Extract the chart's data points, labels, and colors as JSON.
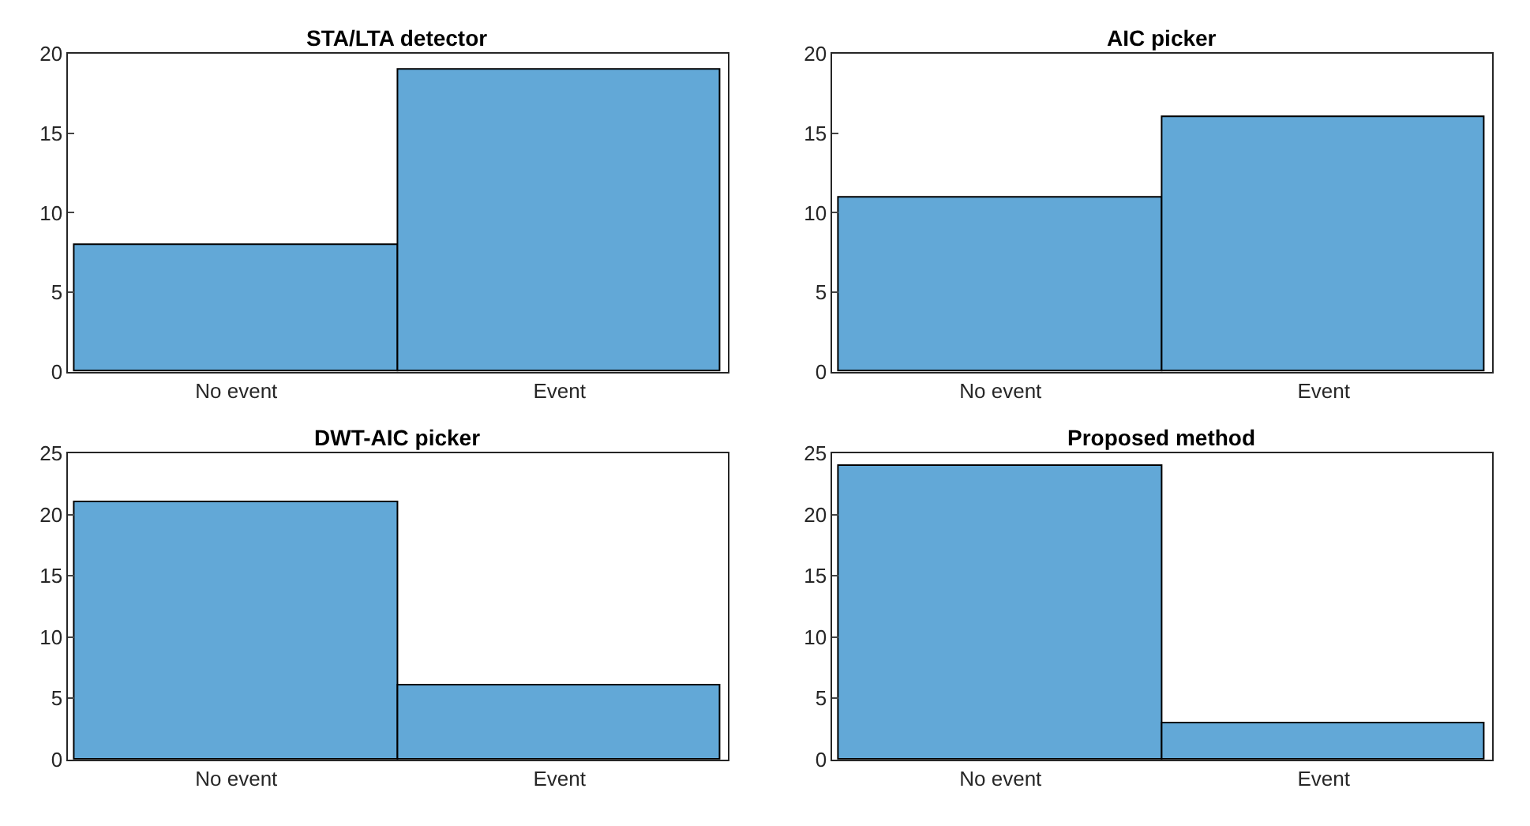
{
  "chart_data": [
    {
      "type": "bar",
      "title": "STA/LTA detector",
      "categories": [
        "No event",
        "Event"
      ],
      "values": [
        8,
        19
      ],
      "color": "#62a8d7",
      "ylim": [
        0,
        20
      ],
      "yticks": [
        0,
        5,
        10,
        15,
        20
      ]
    },
    {
      "type": "bar",
      "title": "AIC picker",
      "categories": [
        "No event",
        "Event"
      ],
      "values": [
        11,
        16
      ],
      "color": "#62a8d7",
      "ylim": [
        0,
        20
      ],
      "yticks": [
        0,
        5,
        10,
        15,
        20
      ]
    },
    {
      "type": "bar",
      "title": "DWT-AIC picker",
      "categories": [
        "No event",
        "Event"
      ],
      "values": [
        21,
        6
      ],
      "color": "#62a8d7",
      "ylim": [
        0,
        25
      ],
      "yticks": [
        0,
        5,
        10,
        15,
        20,
        25
      ]
    },
    {
      "type": "bar",
      "title": "Proposed method",
      "categories": [
        "No event",
        "Event"
      ],
      "values": [
        24,
        3
      ],
      "color": "#62a8d7",
      "ylim": [
        0,
        25
      ],
      "yticks": [
        0,
        5,
        10,
        15,
        20,
        25
      ]
    }
  ]
}
